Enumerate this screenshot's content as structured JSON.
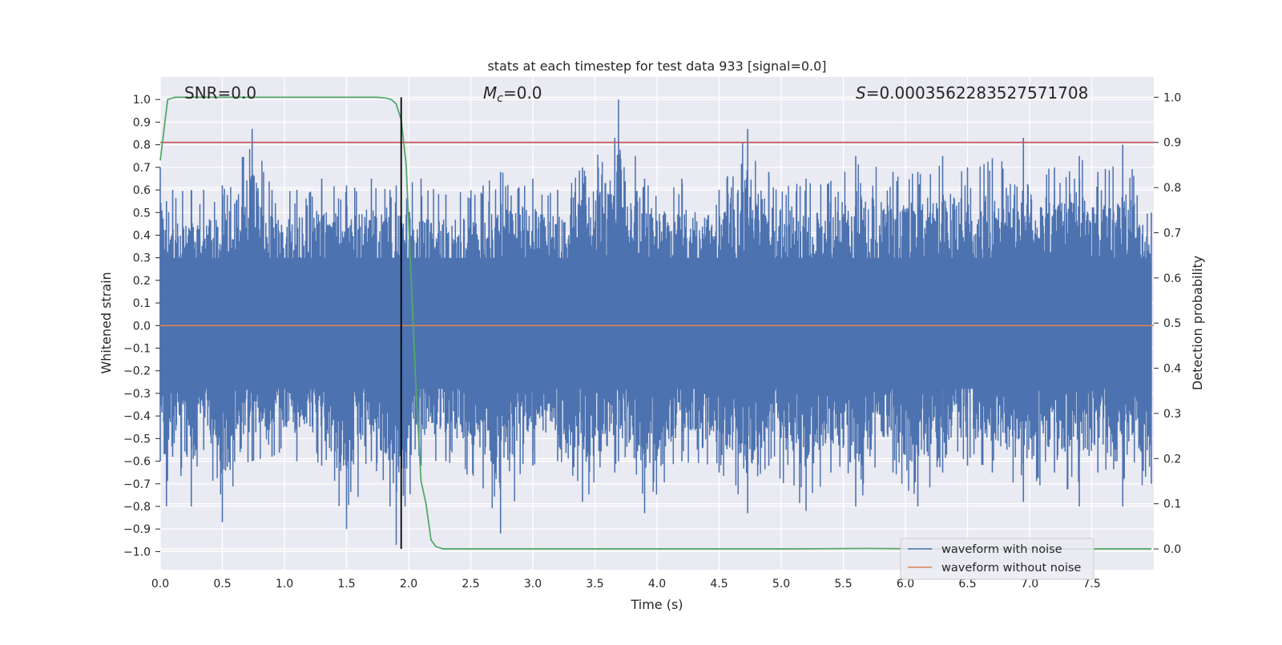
{
  "chart_data": {
    "type": "line",
    "title": "stats at each timestep for test data 933 [signal=0.0]",
    "xlabel": "Time (s)",
    "ylabel": "Whitened strain",
    "y2label": "Detection probability",
    "xlim": [
      0.0,
      8.0
    ],
    "ylim": [
      -1.08,
      1.1
    ],
    "y2lim": [
      -0.046,
      1.045
    ],
    "x_ticks": [
      0.0,
      0.5,
      1.0,
      1.5,
      2.0,
      2.5,
      3.0,
      3.5,
      4.0,
      4.5,
      5.0,
      5.5,
      6.0,
      6.5,
      7.0,
      7.5
    ],
    "y_ticks": [
      1.0,
      0.9,
      0.8,
      0.7,
      0.6,
      0.5,
      0.4,
      0.3,
      0.2,
      0.1,
      0.0,
      -0.1,
      -0.2,
      -0.3,
      -0.4,
      -0.5,
      -0.6,
      -0.7,
      -0.8,
      -0.9,
      -1.0
    ],
    "y2_ticks": [
      1.0,
      0.9,
      0.8,
      0.7,
      0.6,
      0.5,
      0.4,
      0.3,
      0.2,
      0.1,
      0.0
    ],
    "grid": true,
    "legend_position": "lower-right",
    "annotations": {
      "snr": "SNR=0.0",
      "mc_symbol": "M",
      "mc_sub": "c",
      "mc_value": "=0.0",
      "s_symbol": "S",
      "s_value": "=0.0003562283527571708"
    },
    "threshold": {
      "y2": 0.9,
      "color": "#c44e52"
    },
    "marker_line": {
      "x": 1.94,
      "color": "#000000"
    },
    "series": [
      {
        "name": "waveform with noise",
        "color": "#4c72b0",
        "envelope": {
          "x": [
            0.0,
            0.05,
            0.1,
            0.25,
            0.35,
            0.5,
            0.74,
            0.9,
            1.1,
            1.3,
            1.5,
            1.7,
            1.85,
            1.9,
            2.1,
            2.3,
            2.6,
            2.74,
            3.0,
            3.2,
            3.4,
            3.66,
            3.69,
            3.9,
            4.2,
            4.5,
            4.73,
            4.9,
            5.2,
            5.4,
            5.6,
            5.9,
            6.1,
            6.3,
            6.5,
            6.7,
            6.95,
            7.2,
            7.4,
            7.55,
            7.75,
            7.98
          ],
          "max": [
            0.7,
            0.55,
            0.6,
            0.6,
            0.6,
            0.62,
            0.87,
            0.6,
            0.6,
            0.65,
            0.62,
            0.65,
            0.6,
            0.62,
            0.65,
            0.58,
            0.62,
            0.68,
            0.65,
            0.6,
            0.7,
            0.83,
            1.0,
            0.65,
            0.65,
            0.6,
            0.87,
            0.68,
            0.65,
            0.64,
            0.75,
            0.68,
            0.68,
            0.75,
            0.7,
            0.74,
            0.83,
            0.7,
            0.75,
            0.68,
            0.8,
            0.5
          ],
          "min": [
            -0.6,
            -0.8,
            -0.58,
            -0.8,
            -0.55,
            -0.87,
            -0.6,
            -0.58,
            -0.6,
            -0.62,
            -0.9,
            -0.6,
            -0.8,
            -0.97,
            -0.62,
            -0.6,
            -0.72,
            -0.92,
            -0.62,
            -0.6,
            -0.78,
            -0.65,
            -0.6,
            -0.83,
            -0.6,
            -0.65,
            -0.83,
            -0.62,
            -0.82,
            -0.65,
            -0.8,
            -0.65,
            -0.8,
            -0.65,
            -0.62,
            -0.65,
            -0.78,
            -0.65,
            -0.8,
            -0.65,
            -0.8,
            -0.7
          ]
        }
      },
      {
        "name": "waveform without noise",
        "color": "#dd8452",
        "x": [
          0.0,
          8.0
        ],
        "y": [
          0.0,
          0.0
        ]
      },
      {
        "name": "detection probability",
        "color": "#55a868",
        "axis": "right",
        "x": [
          0.0,
          0.06,
          0.12,
          0.3,
          1.0,
          1.5,
          1.75,
          1.82,
          1.86,
          1.9,
          1.94,
          1.98,
          2.02,
          2.06,
          2.1,
          2.14,
          2.18,
          2.22,
          2.28,
          3.0,
          5.0,
          5.7,
          6.2,
          7.0,
          7.98
        ],
        "y": [
          0.86,
          0.995,
          1.0,
          1.0,
          1.0,
          1.0,
          1.0,
          0.998,
          0.995,
          0.985,
          0.95,
          0.85,
          0.6,
          0.35,
          0.15,
          0.1,
          0.02,
          0.005,
          0.0,
          0.0,
          0.0,
          0.001,
          0.0,
          0.0,
          0.0
        ]
      }
    ]
  }
}
